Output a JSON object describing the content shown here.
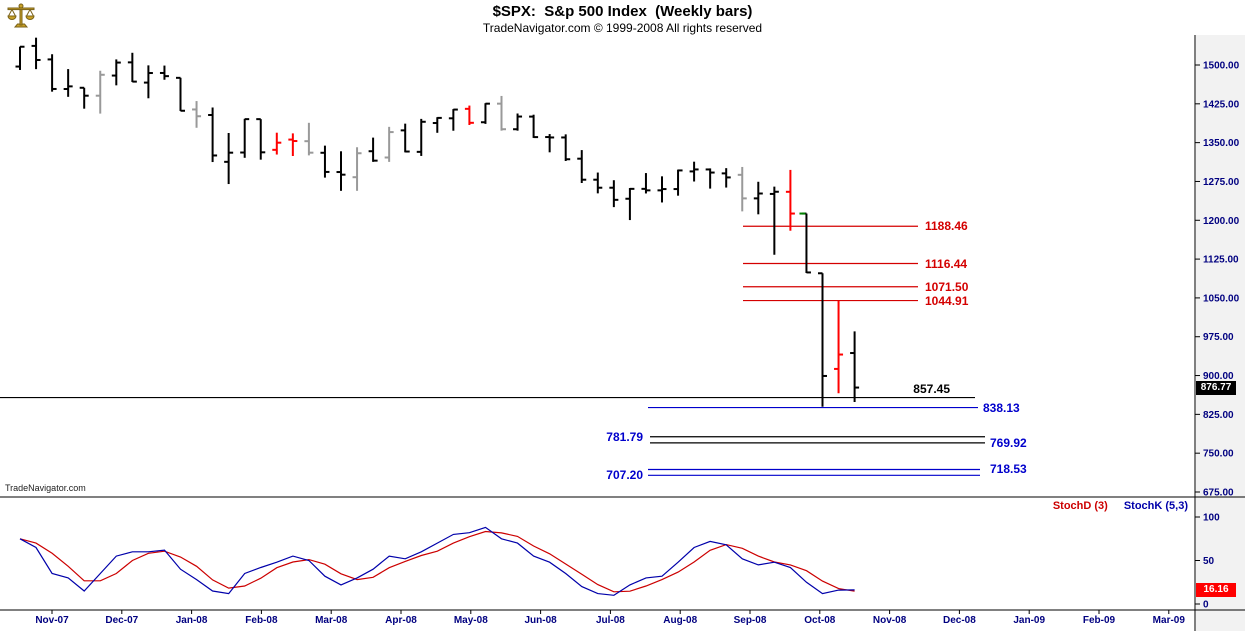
{
  "header": {
    "title": "$SPX:  S&p 500 Index  (Weekly bars)",
    "subtitle": "TradeNavigator.com © 1999-2008 All rights reserved"
  },
  "watermark": "TradeNavigator.com",
  "colors": {
    "axis_label": "#000080",
    "level_red": "#d40000",
    "level_blue": "#0000cc",
    "bar_black": "#000000",
    "bar_red": "#ff0000",
    "bar_gray": "#999999",
    "price_tag_bg": "#000000",
    "stoch_tag_bg": "#ff0000",
    "logo_gold": "#c9a227"
  },
  "chart_data": {
    "type": "ohlc-bar",
    "title": "$SPX:  S&p 500 Index  (Weekly bars)",
    "grid": false,
    "x_tick_labels": [
      "Nov-07",
      "Dec-07",
      "Jan-08",
      "Feb-08",
      "Mar-08",
      "Apr-08",
      "May-08",
      "Jun-08",
      "Jul-08",
      "Aug-08",
      "Sep-08",
      "Oct-08",
      "Nov-08",
      "Dec-08",
      "Jan-09",
      "Feb-09",
      "Mar-09"
    ],
    "price_panel": {
      "ylim": [
        661,
        1560
      ],
      "y_ticks": [
        1500,
        1425,
        1350,
        1275,
        1200,
        1125,
        1050,
        975,
        900,
        825,
        750,
        675
      ],
      "current_price": 876.77,
      "bar_format": [
        "open",
        "high",
        "low",
        "close",
        "color"
      ],
      "bars": [
        [
          1497.0,
          1535.5,
          1490.4,
          1535.3,
          "#000000"
        ],
        [
          1536.9,
          1552.8,
          1492.0,
          1509.7,
          "#000000"
        ],
        [
          1510.8,
          1520.8,
          1448.5,
          1453.7,
          "#000000"
        ],
        [
          1453.6,
          1492.1,
          1438.5,
          1458.7,
          "#000000"
        ],
        [
          1456.0,
          1456.0,
          1415.6,
          1440.7,
          "#000000"
        ],
        [
          1440.7,
          1488.9,
          1406.1,
          1481.1,
          "#999999"
        ],
        [
          1479.6,
          1510.8,
          1460.7,
          1504.7,
          "#000000"
        ],
        [
          1505.1,
          1523.6,
          1467.1,
          1467.9,
          "#000000"
        ],
        [
          1466.0,
          1499.3,
          1435.7,
          1484.5,
          "#000000"
        ],
        [
          1484.6,
          1498.9,
          1471.5,
          1478.5,
          "#000000"
        ],
        [
          1475.2,
          1475.3,
          1411.2,
          1411.6,
          "#000000"
        ],
        [
          1414.1,
          1430.3,
          1378.7,
          1401.0,
          "#999999"
        ],
        [
          1403.4,
          1417.9,
          1312.5,
          1325.2,
          "#000000"
        ],
        [
          1312.9,
          1368.6,
          1270.0,
          1330.6,
          "#000000"
        ],
        [
          1330.9,
          1396.0,
          1320.7,
          1395.4,
          "#000000"
        ],
        [
          1395.4,
          1395.4,
          1317.1,
          1331.3,
          "#000000"
        ],
        [
          1336.1,
          1369.2,
          1327.0,
          1349.9,
          "#ff0000"
        ],
        [
          1355.9,
          1367.9,
          1324.2,
          1353.1,
          "#ff0000"
        ],
        [
          1352.8,
          1388.3,
          1325.4,
          1330.6,
          "#999999"
        ],
        [
          1330.4,
          1344.2,
          1282.4,
          1293.4,
          "#000000"
        ],
        [
          1293.2,
          1333.3,
          1256.9,
          1288.1,
          "#000000"
        ],
        [
          1283.2,
          1341.1,
          1256.9,
          1329.5,
          "#999999"
        ],
        [
          1333.4,
          1359.7,
          1312.9,
          1315.2,
          "#000000"
        ],
        [
          1321.3,
          1380.5,
          1312.8,
          1370.4,
          "#999999"
        ],
        [
          1373.7,
          1386.7,
          1331.2,
          1332.8,
          "#000000"
        ],
        [
          1332.2,
          1395.9,
          1324.3,
          1390.3,
          "#000000"
        ],
        [
          1387.9,
          1399.1,
          1369.0,
          1397.8,
          "#000000"
        ],
        [
          1397.0,
          1414.8,
          1373.0,
          1413.9,
          "#000000"
        ],
        [
          1415.3,
          1421.6,
          1384.1,
          1388.3,
          "#ff0000"
        ],
        [
          1389.4,
          1426.2,
          1386.2,
          1425.3,
          "#000000"
        ],
        [
          1425.3,
          1440.2,
          1373.1,
          1375.9,
          "#999999"
        ],
        [
          1375.9,
          1406.3,
          1373.1,
          1400.4,
          "#000000"
        ],
        [
          1400.3,
          1404.0,
          1359.1,
          1360.7,
          "#000000"
        ],
        [
          1360.8,
          1366.6,
          1331.3,
          1360.0,
          "#000000"
        ],
        [
          1360.0,
          1366.0,
          1314.5,
          1317.9,
          "#000000"
        ],
        [
          1319.0,
          1335.6,
          1272.0,
          1278.4,
          "#000000"
        ],
        [
          1278.4,
          1292.2,
          1252.0,
          1262.9,
          "#000000"
        ],
        [
          1262.9,
          1277.4,
          1225.4,
          1239.5,
          "#000000"
        ],
        [
          1241.6,
          1262.3,
          1200.4,
          1260.7,
          "#000000"
        ],
        [
          1260.7,
          1291.2,
          1251.8,
          1257.8,
          "#000000"
        ],
        [
          1257.8,
          1284.9,
          1234.4,
          1260.3,
          "#000000"
        ],
        [
          1260.3,
          1297.9,
          1247.5,
          1296.3,
          "#000000"
        ],
        [
          1294.4,
          1313.2,
          1274.9,
          1298.2,
          "#000000"
        ],
        [
          1298.2,
          1300.2,
          1261.2,
          1292.2,
          "#000000"
        ],
        [
          1290.6,
          1300.7,
          1263.2,
          1282.8,
          "#000000"
        ],
        [
          1287.8,
          1303.0,
          1217.2,
          1242.3,
          "#999999"
        ],
        [
          1242.3,
          1274.4,
          1211.5,
          1251.7,
          "#000000"
        ],
        [
          1250.9,
          1265.1,
          1133.5,
          1255.1,
          "#000000"
        ],
        [
          1255.0,
          1297.3,
          1179.8,
          1213.0,
          "#ff0000"
        ],
        [
          1213.0,
          1213.0,
          1098.1,
          1099.2,
          "#000000"
        ],
        [
          1097.6,
          1097.6,
          839.8,
          899.2,
          "#000000"
        ],
        [
          912.8,
          1044.3,
          865.8,
          940.6,
          "#ff0000"
        ],
        [
          943.5,
          985.4,
          848.9,
          876.8,
          "#000000"
        ]
      ],
      "markers": [
        {
          "bar_index": 49,
          "price": 1213,
          "color": "#008000"
        }
      ],
      "levels": [
        {
          "label": "1188.46",
          "value": 1188.46,
          "color": "#d40000",
          "x1": 743,
          "x2": 918,
          "label_x": 925,
          "label_align": "left"
        },
        {
          "label": "1116.44",
          "value": 1116.44,
          "color": "#d40000",
          "x1": 743,
          "x2": 918,
          "label_x": 925,
          "label_align": "left"
        },
        {
          "label": "1071.50",
          "value": 1071.5,
          "color": "#d40000",
          "x1": 743,
          "x2": 918,
          "label_x": 925,
          "label_align": "left"
        },
        {
          "label": "1044.91",
          "value": 1044.91,
          "color": "#d40000",
          "x1": 743,
          "x2": 918,
          "label_x": 925,
          "label_align": "left"
        },
        {
          "label": "857.45",
          "value": 857.45,
          "color": "#000000",
          "x1": 0,
          "x2": 975,
          "label_x": 950,
          "label_align": "right",
          "label_dy": -16
        },
        {
          "label": "838.13",
          "value": 838.13,
          "color": "#0000cc",
          "x1": 648,
          "x2": 978,
          "label_x": 983,
          "label_align": "left"
        },
        {
          "label": "781.79",
          "value": 781.79,
          "color": "#000000",
          "label_color": "#0000cc",
          "x1": 650,
          "x2": 985,
          "label_x": 643,
          "label_align": "right"
        },
        {
          "label": "769.92",
          "value": 769.92,
          "color": "#000000",
          "label_color": "#0000cc",
          "x1": 650,
          "x2": 985,
          "label_x": 990,
          "label_align": "left"
        },
        {
          "label": "718.53",
          "value": 718.53,
          "color": "#0000cc",
          "x1": 648,
          "x2": 980,
          "label_x": 990,
          "label_align": "left"
        },
        {
          "label": "707.20",
          "value": 707.2,
          "color": "#0000cc",
          "x1": 648,
          "x2": 980,
          "label_x": 643,
          "label_align": "right"
        }
      ]
    },
    "stoch_panel": {
      "ylim": [
        0,
        100
      ],
      "y_ticks": [
        100,
        50,
        0
      ],
      "current_value": 16.16,
      "legend_position": "top-right",
      "series": [
        {
          "name": "StochD (3)",
          "color": "#cc0000",
          "values": [
            75,
            70,
            58.3,
            43.3,
            26.7,
            26.7,
            35,
            50,
            58.3,
            60.7,
            54,
            43.3,
            27.7,
            18.3,
            20.7,
            29.7,
            41.7,
            48.3,
            51,
            45.7,
            34.7,
            28,
            30.7,
            41.7,
            49,
            55.7,
            60.7,
            70,
            77.3,
            83.3,
            81.7,
            77.7,
            66.7,
            57.7,
            46,
            34.3,
            22.3,
            14,
            14.7,
            20.7,
            28,
            36.7,
            48.3,
            61.7,
            68.3,
            64,
            55,
            48.3,
            45,
            38.3,
            26.3,
            17.7,
            14.7
          ]
        },
        {
          "name": "StochK (5,3)",
          "color": "#0000aa",
          "values": [
            75,
            65,
            35,
            30,
            15,
            35,
            55,
            60,
            60,
            62,
            40,
            28,
            15,
            12,
            35,
            42,
            48,
            55,
            50,
            32,
            22,
            30,
            40,
            55,
            52,
            60,
            70,
            80,
            82,
            88,
            75,
            70,
            55,
            48,
            35,
            20,
            12,
            10,
            22,
            30,
            32,
            48,
            65,
            72,
            68,
            52,
            45,
            48,
            42,
            25,
            12,
            16,
            16.16
          ]
        }
      ]
    }
  }
}
